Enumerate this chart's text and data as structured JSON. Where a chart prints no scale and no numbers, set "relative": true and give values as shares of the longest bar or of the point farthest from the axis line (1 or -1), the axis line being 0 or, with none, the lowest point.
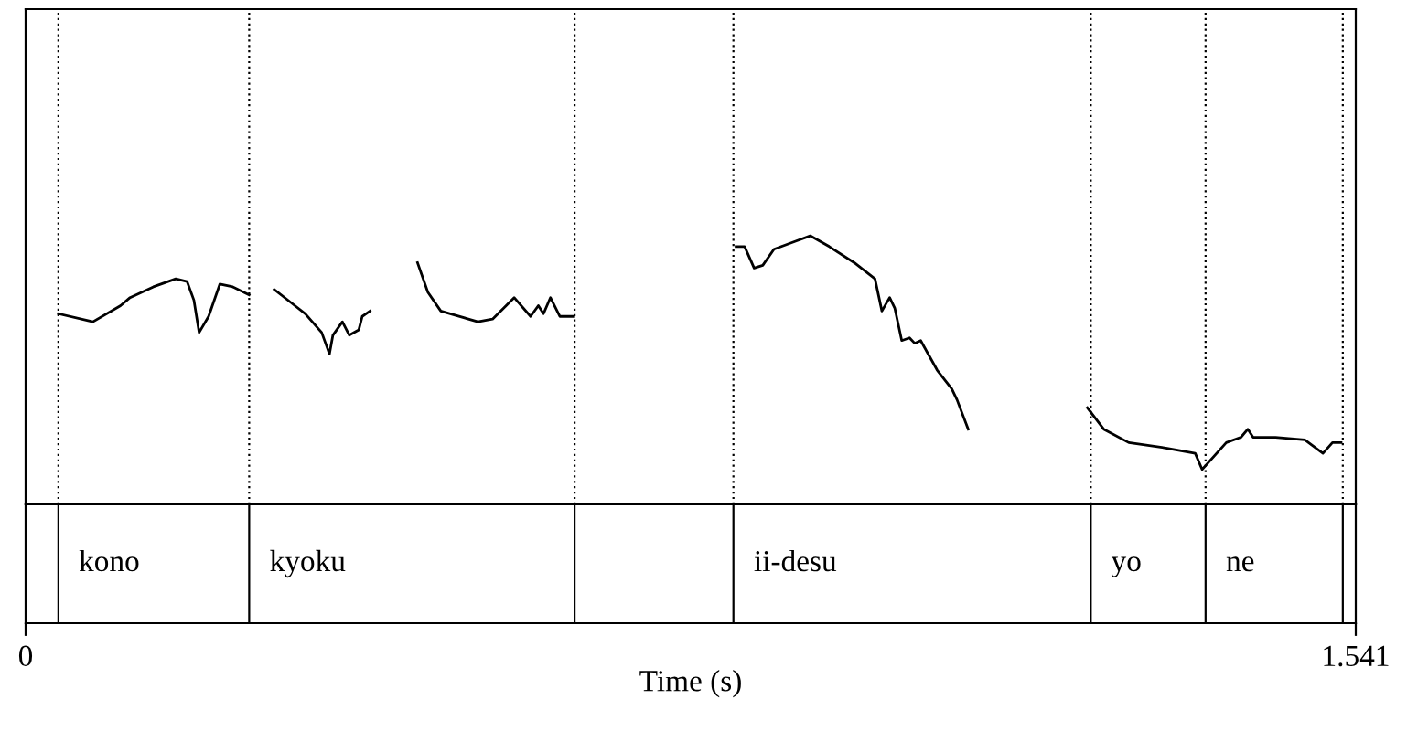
{
  "chart_data": {
    "type": "line",
    "relative": true,
    "xlim": [
      0,
      1.541
    ],
    "xticks": [
      0,
      1.541
    ],
    "xlabel": "Time (s)",
    "tick_labels": "x",
    "marker": "none",
    "line_style": "solid",
    "series": [
      {
        "color": "#000000",
        "x": [
          0.038,
          0.078,
          0.11,
          0.121,
          0.148,
          0.174,
          0.187,
          0.195,
          0.201,
          0.212,
          0.225,
          0.24,
          0.259,
          0.27,
          0.288,
          0.312,
          0.324,
          0.343,
          0.352,
          0.356,
          0.367,
          0.375,
          0.386,
          0.39,
          0.399,
          0.42,
          0.454,
          0.466,
          0.481,
          0.524,
          0.541,
          0.566,
          0.585,
          0.594,
          0.6,
          0.608,
          0.619,
          0.634,
          0.7,
          0.823,
          0.833,
          0.844,
          0.854,
          0.867,
          0.892,
          0.909,
          0.931,
          0.96,
          0.984,
          0.992,
          1.001,
          1.007,
          1.015,
          1.024,
          1.03,
          1.037,
          1.056,
          1.073,
          1.079,
          1.092,
          1.15,
          1.23,
          1.249,
          1.278,
          1.321,
          1.355,
          1.363,
          1.391,
          1.408,
          1.416,
          1.422,
          1.448,
          1.482,
          1.503,
          1.514,
          1.524
        ],
        "values": [
          0.71,
          0.68,
          0.74,
          0.77,
          0.81,
          0.84,
          0.83,
          0.76,
          0.64,
          0.7,
          0.82,
          0.81,
          0.78,
          null,
          0.8,
          0.74,
          0.71,
          0.64,
          0.56,
          0.63,
          0.68,
          0.63,
          0.65,
          0.7,
          0.72,
          null,
          0.9,
          0.79,
          0.72,
          0.68,
          0.69,
          0.77,
          0.7,
          0.74,
          0.71,
          0.77,
          0.7,
          0.7,
          null,
          0.96,
          0.96,
          0.88,
          0.89,
          0.95,
          0.98,
          1.0,
          0.96,
          0.9,
          0.84,
          0.72,
          0.77,
          0.73,
          0.61,
          0.62,
          0.6,
          0.61,
          0.5,
          0.43,
          0.39,
          0.28,
          null,
          0.36,
          0.28,
          0.23,
          0.21,
          0.19,
          0.13,
          0.23,
          0.25,
          0.28,
          0.25,
          0.25,
          0.24,
          0.19,
          0.23,
          0.23
        ]
      }
    ],
    "ref_lines": [
      {
        "axis": "x",
        "value": 0.038,
        "line_style": "dotted",
        "label": "kono"
      },
      {
        "axis": "x",
        "value": 0.259,
        "line_style": "dotted",
        "label": "kyoku"
      },
      {
        "axis": "x",
        "value": 0.636,
        "line_style": "dotted"
      },
      {
        "axis": "x",
        "value": 0.82,
        "line_style": "dotted",
        "label": "ii-desu"
      },
      {
        "axis": "x",
        "value": 1.234,
        "line_style": "dotted",
        "label": "yo"
      },
      {
        "axis": "x",
        "value": 1.367,
        "line_style": "dotted",
        "label": "ne"
      },
      {
        "axis": "x",
        "value": 1.526,
        "line_style": "dotted"
      }
    ]
  }
}
